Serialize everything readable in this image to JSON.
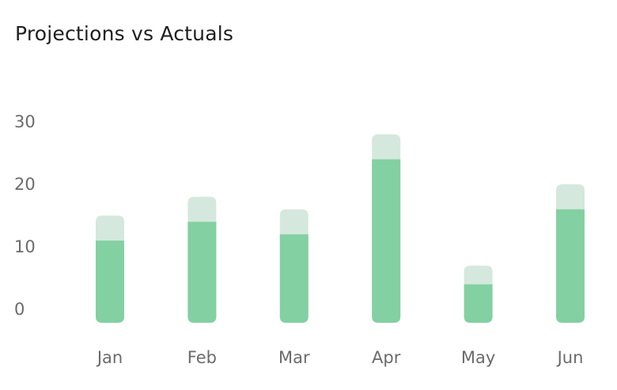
{
  "chart_data": {
    "type": "bar",
    "title": "Projections vs Actuals",
    "xlabel": "",
    "ylabel": "",
    "categories": [
      "Jan",
      "Feb",
      "Mar",
      "Apr",
      "May",
      "Jun"
    ],
    "series": [
      {
        "name": "",
        "values": [
          11,
          14,
          12,
          24,
          4,
          16
        ],
        "color": "#83d0a2"
      },
      {
        "name": "",
        "values": [
          4,
          4,
          4,
          4,
          3,
          4
        ],
        "color": "#d5e8dd"
      }
    ],
    "stacked": true,
    "yticks": [
      0,
      10,
      20,
      30
    ],
    "ylim": [
      0,
      30
    ],
    "grid": false,
    "legend": "none"
  }
}
